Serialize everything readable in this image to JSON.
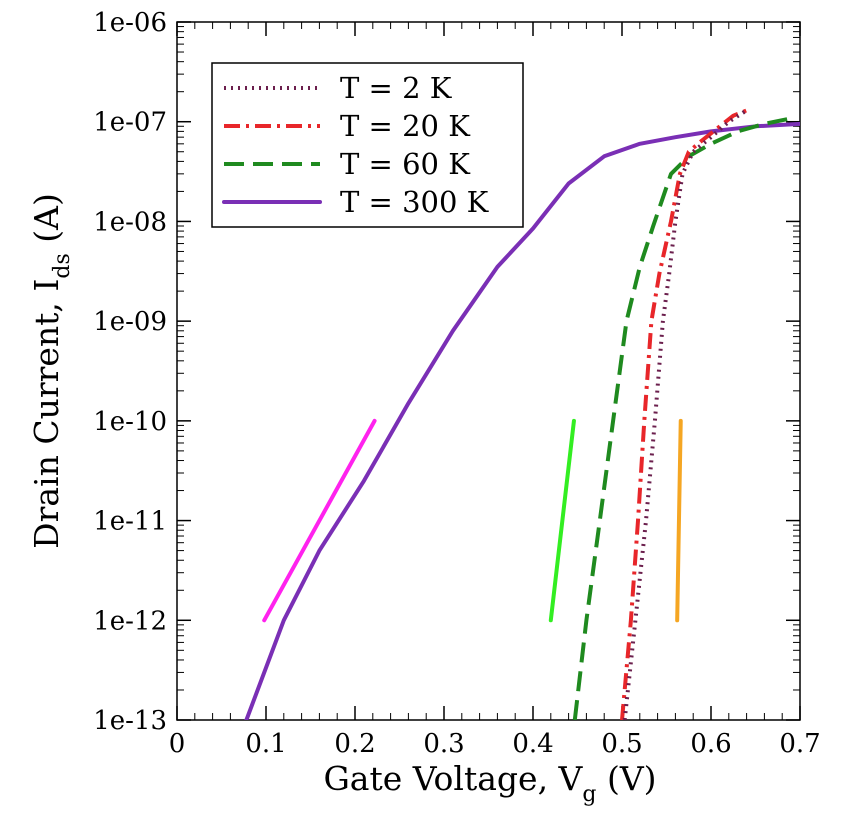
{
  "chart_data": {
    "type": "line",
    "x_scale": "linear",
    "y_scale": "log",
    "xlim": [
      0,
      0.7
    ],
    "ylim": [
      1e-13,
      1e-06
    ],
    "x_ticks": [
      0,
      0.1,
      0.2,
      0.3,
      0.4,
      0.5,
      0.6,
      0.7
    ],
    "x_tick_labels": [
      "0",
      "0.1",
      "0.2",
      "0.3",
      "0.4",
      "0.5",
      "0.6",
      "0.7"
    ],
    "y_ticks": [
      1e-13,
      1e-12,
      1e-11,
      1e-10,
      1e-09,
      1e-08,
      1e-07,
      1e-06
    ],
    "y_tick_labels": [
      "1e-13",
      "1e-12",
      "1e-11",
      "1e-10",
      "1e-09",
      "1e-08",
      "1e-07",
      "1e-06"
    ],
    "xlabel": {
      "main": "Gate Voltage, V",
      "sub": "g",
      "tail": " (V)"
    },
    "ylabel": {
      "main": "Drain Current, I",
      "sub": "ds",
      "tail": " (A)"
    },
    "legend_position": "top-left",
    "series": [
      {
        "name": "T = 2 K",
        "color": "#6b1f4d",
        "style": "dotted",
        "x": [
          0.503,
          0.515,
          0.527,
          0.537,
          0.546,
          0.553,
          0.56,
          0.568,
          0.58,
          0.6,
          0.62,
          0.64
        ],
        "y": [
          1e-13,
          1e-12,
          1e-11,
          1e-10,
          1e-09,
          3e-09,
          1e-08,
          3e-08,
          5e-08,
          7e-08,
          1e-07,
          1.3e-07
        ]
      },
      {
        "name": "T = 20 K",
        "color": "#e8262a",
        "style": "dashdot",
        "x": [
          0.5,
          0.51,
          0.518,
          0.525,
          0.533,
          0.542,
          0.555,
          0.565,
          0.575,
          0.59,
          0.61,
          0.625,
          0.64
        ],
        "y": [
          1e-13,
          1e-12,
          1e-11,
          1e-10,
          1e-09,
          3e-09,
          1e-08,
          3e-08,
          5e-08,
          6.5e-08,
          9e-08,
          1.15e-07,
          1.3e-07
        ]
      },
      {
        "name": "T = 60 K",
        "color": "#1f8a1f",
        "style": "dashed",
        "x": [
          0.447,
          0.46,
          0.475,
          0.49,
          0.505,
          0.52,
          0.535,
          0.555,
          0.575,
          0.6,
          0.63,
          0.66,
          0.69
        ],
        "y": [
          1e-13,
          1e-12,
          1e-11,
          1e-10,
          1e-09,
          3.5e-09,
          9e-09,
          3e-08,
          4.5e-08,
          6e-08,
          8e-08,
          9.5e-08,
          1.08e-07
        ]
      },
      {
        "name": "T = 300 K",
        "color": "#7a2fb5",
        "style": "solid",
        "x": [
          0.078,
          0.12,
          0.16,
          0.21,
          0.26,
          0.31,
          0.36,
          0.4,
          0.44,
          0.48,
          0.52,
          0.56,
          0.6,
          0.65,
          0.7
        ],
        "y": [
          1e-13,
          1e-12,
          5e-12,
          2.5e-11,
          1.5e-10,
          8e-10,
          3.5e-09,
          8.5e-09,
          2.4e-08,
          4.5e-08,
          6e-08,
          7e-08,
          8e-08,
          9e-08,
          9.5e-08
        ]
      }
    ],
    "reference_lines": [
      {
        "name": "slope-60mV-dec",
        "color": "#ff22ee",
        "x": [
          0.098,
          0.222
        ],
        "y": [
          1e-12,
          1e-10
        ]
      },
      {
        "name": "slope-green",
        "color": "#33ee22",
        "x": [
          0.42,
          0.446
        ],
        "y": [
          1e-12,
          1e-10
        ]
      },
      {
        "name": "slope-orange",
        "color": "#f5a623",
        "x": [
          0.562,
          0.566
        ],
        "y": [
          1e-12,
          1e-10
        ]
      }
    ]
  }
}
